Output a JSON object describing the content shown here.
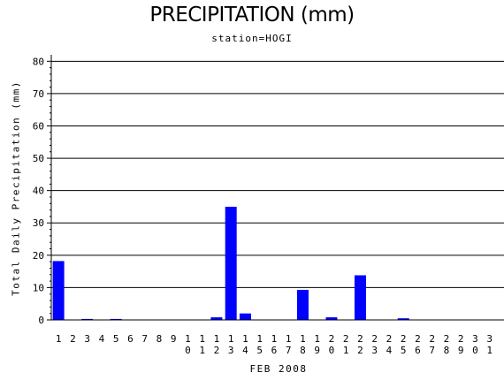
{
  "chart_data": {
    "type": "bar",
    "title": "PRECIPITATION (mm)",
    "subtitle": "station=HOGI",
    "xlabel": "FEB 2008",
    "ylabel": "Total Daily Precipitation (mm)",
    "ylim": [
      0,
      82
    ],
    "yticks": [
      0,
      10,
      20,
      30,
      40,
      50,
      60,
      70,
      80
    ],
    "grid": true,
    "categories": [
      "1",
      "2",
      "3",
      "4",
      "5",
      "6",
      "7",
      "8",
      "9",
      "10",
      "11",
      "12",
      "13",
      "14",
      "15",
      "16",
      "17",
      "18",
      "19",
      "20",
      "21",
      "22",
      "23",
      "24",
      "25",
      "26",
      "27",
      "28",
      "29",
      "30",
      "31"
    ],
    "values": [
      18.2,
      0,
      0.3,
      0,
      0.3,
      0,
      0,
      0,
      0,
      0,
      0,
      0.8,
      35.0,
      2.0,
      0,
      0,
      0,
      9.3,
      0,
      0.8,
      0,
      13.8,
      0,
      0,
      0.5,
      0,
      0,
      0,
      0,
      0,
      0
    ],
    "bar_color": "#0000ff"
  }
}
